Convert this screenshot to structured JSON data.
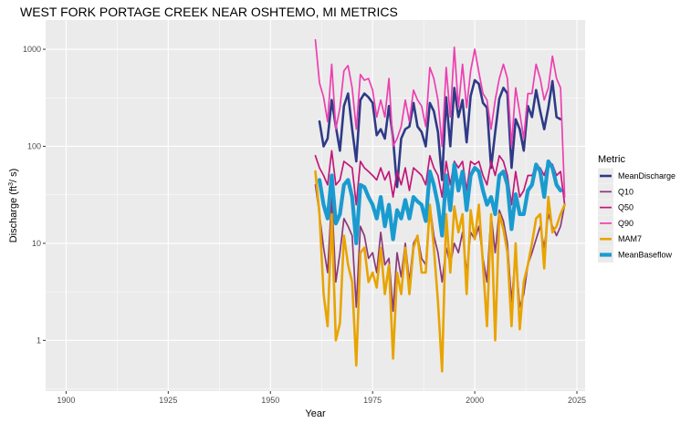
{
  "chart_data": {
    "type": "line",
    "title": "WEST FORK PORTAGE CREEK NEAR OSHTEMO, MI  METRICS",
    "xlabel": "Year",
    "ylabel": "Discharge (ft³/s)",
    "ylabel_parts": {
      "main": "Discharge (ft",
      "sup": "3",
      "tail": "/ s)"
    },
    "x_scale": "linear",
    "y_scale": "log10",
    "xlim": [
      1895,
      2027
    ],
    "ylim": [
      0.3,
      2000
    ],
    "x_ticks": [
      1900,
      1925,
      1950,
      1975,
      2000,
      2025
    ],
    "x_tick_labels": [
      "1900",
      "1925",
      "1950",
      "1975",
      "2000",
      "2025"
    ],
    "y_ticks": [
      1,
      10,
      100,
      1000
    ],
    "y_tick_labels": [
      "1",
      "10",
      "100",
      "1000"
    ],
    "grid": true,
    "background": "#ebebeb",
    "legend": {
      "title": "Metric",
      "position": "right"
    },
    "series": [
      {
        "name": "MeanDischarge",
        "color": "#2e3a87",
        "width": 2.6,
        "x": [
          1961,
          1962,
          1963,
          1964,
          1965,
          1966,
          1967,
          1968,
          1969,
          1970,
          1971,
          1972,
          1973,
          1974,
          1975,
          1976,
          1977,
          1978,
          1979,
          1980,
          1981,
          1982,
          1983,
          1984,
          1985,
          1986,
          1987,
          1988,
          1989,
          1990,
          1991,
          1992,
          1993,
          1994,
          1995,
          1996,
          1997,
          1998,
          1999,
          2000,
          2001,
          2002,
          2003,
          2004,
          2005,
          2006,
          2007,
          2008,
          2009,
          2010,
          2011,
          2012,
          2013,
          2014,
          2015,
          2016,
          2017,
          2018,
          2019,
          2020,
          2021,
          2022
        ],
        "values": [
          null,
          180,
          100,
          120,
          300,
          160,
          90,
          260,
          350,
          150,
          70,
          300,
          350,
          320,
          280,
          130,
          150,
          120,
          260,
          120,
          38,
          120,
          150,
          160,
          280,
          160,
          140,
          100,
          280,
          230,
          140,
          45,
          320,
          100,
          400,
          200,
          300,
          110,
          330,
          480,
          440,
          280,
          250,
          60,
          140,
          310,
          400,
          350,
          60,
          190,
          150,
          90,
          260,
          200,
          380,
          230,
          150,
          250,
          470,
          200,
          190,
          null
        ]
      },
      {
        "name": "Q10",
        "color": "#8b3a7a",
        "width": 1.7,
        "x": [
          1961,
          1962,
          1963,
          1964,
          1965,
          1966,
          1967,
          1968,
          1969,
          1970,
          1971,
          1972,
          1973,
          1974,
          1975,
          1976,
          1977,
          1978,
          1979,
          1980,
          1981,
          1982,
          1983,
          1984,
          1985,
          1986,
          1987,
          1988,
          1989,
          1990,
          1991,
          1992,
          1993,
          1994,
          1995,
          1996,
          1997,
          1998,
          1999,
          2000,
          2001,
          2002,
          2003,
          2004,
          2005,
          2006,
          2007,
          2008,
          2009,
          2010,
          2011,
          2012,
          2013,
          2014,
          2015,
          2016,
          2017,
          2018,
          2019,
          2020,
          2021,
          2022
        ],
        "values": [
          40,
          20,
          9,
          5,
          30,
          4,
          8,
          18,
          15,
          12,
          2.2,
          15,
          12,
          7,
          8,
          5,
          13,
          6,
          7,
          2,
          8,
          4.5,
          10,
          4,
          10,
          12,
          7,
          6,
          25,
          12,
          8,
          4,
          9,
          6,
          10,
          8,
          13,
          5,
          13,
          11,
          15,
          7,
          4,
          20,
          8,
          22,
          17,
          10,
          2.5,
          8,
          2.2,
          3,
          6,
          8,
          11,
          15,
          9,
          20,
          15,
          12,
          15,
          25
        ]
      },
      {
        "name": "Q50",
        "color": "#c2187a",
        "width": 1.7,
        "x": [
          1961,
          1962,
          1963,
          1964,
          1965,
          1966,
          1967,
          1968,
          1969,
          1970,
          1971,
          1972,
          1973,
          1974,
          1975,
          1976,
          1977,
          1978,
          1979,
          1980,
          1981,
          1982,
          1983,
          1984,
          1985,
          1986,
          1987,
          1988,
          1989,
          1990,
          1991,
          1992,
          1993,
          1994,
          1995,
          1996,
          1997,
          1998,
          1999,
          2000,
          2001,
          2002,
          2003,
          2004,
          2005,
          2006,
          2007,
          2008,
          2009,
          2010,
          2011,
          2012,
          2013,
          2014,
          2015,
          2016,
          2017,
          2018,
          2019,
          2020,
          2021,
          2022
        ],
        "values": [
          80,
          60,
          50,
          40,
          90,
          40,
          45,
          70,
          65,
          60,
          25,
          70,
          60,
          55,
          50,
          45,
          60,
          45,
          55,
          30,
          55,
          40,
          60,
          35,
          60,
          55,
          50,
          40,
          80,
          60,
          50,
          30,
          70,
          40,
          70,
          60,
          70,
          35,
          70,
          65,
          70,
          50,
          40,
          70,
          50,
          80,
          70,
          50,
          25,
          55,
          30,
          35,
          50,
          50,
          60,
          60,
          50,
          70,
          65,
          50,
          55,
          25
        ]
      },
      {
        "name": "Q90",
        "color": "#ee3fb0",
        "width": 1.7,
        "x": [
          1961,
          1962,
          1963,
          1964,
          1965,
          1966,
          1967,
          1968,
          1969,
          1970,
          1971,
          1972,
          1973,
          1974,
          1975,
          1976,
          1977,
          1978,
          1979,
          1980,
          1981,
          1982,
          1983,
          1984,
          1985,
          1986,
          1987,
          1988,
          1989,
          1990,
          1991,
          1992,
          1993,
          1994,
          1995,
          1996,
          1997,
          1998,
          1999,
          2000,
          2001,
          2002,
          2003,
          2004,
          2005,
          2006,
          2007,
          2008,
          2009,
          2010,
          2011,
          2012,
          2013,
          2014,
          2015,
          2016,
          2017,
          2018,
          2019,
          2020,
          2021,
          2022
        ],
        "values": [
          1250,
          450,
          320,
          180,
          700,
          150,
          250,
          600,
          680,
          400,
          150,
          550,
          480,
          500,
          380,
          200,
          300,
          200,
          500,
          100,
          120,
          160,
          300,
          180,
          380,
          300,
          260,
          160,
          650,
          500,
          300,
          100,
          650,
          200,
          1050,
          250,
          700,
          250,
          600,
          1000,
          580,
          350,
          300,
          150,
          300,
          500,
          700,
          500,
          100,
          400,
          220,
          120,
          350,
          350,
          700,
          500,
          300,
          400,
          850,
          500,
          400,
          30
        ]
      },
      {
        "name": "MAM7",
        "color": "#e8a400",
        "width": 2.6,
        "x": [
          1961,
          1962,
          1963,
          1964,
          1965,
          1966,
          1967,
          1968,
          1969,
          1970,
          1971,
          1972,
          1973,
          1974,
          1975,
          1976,
          1977,
          1978,
          1979,
          1980,
          1981,
          1982,
          1983,
          1984,
          1985,
          1986,
          1987,
          1988,
          1989,
          1990,
          1991,
          1992,
          1993,
          1994,
          1995,
          1996,
          1997,
          1998,
          1999,
          2000,
          2001,
          2002,
          2003,
          2004,
          2005,
          2006,
          2007,
          2008,
          2009,
          2010,
          2011,
          2012,
          2013,
          2014,
          2015,
          2016,
          2017,
          2018,
          2019,
          2020,
          2021,
          2022
        ],
        "values": [
          55,
          20,
          3,
          1.4,
          20,
          1.0,
          1.5,
          12,
          6,
          4.0,
          0.55,
          8,
          9,
          4,
          5,
          3.5,
          9,
          3,
          6,
          0.65,
          5,
          3,
          9,
          3,
          9,
          12,
          5,
          5,
          25,
          9,
          2.5,
          0.48,
          20,
          5,
          24,
          13,
          20,
          3,
          22,
          11,
          25,
          6,
          1.4,
          20,
          1.0,
          20,
          14,
          8,
          1.4,
          10,
          1.3,
          4,
          6,
          10,
          18,
          20,
          5.5,
          30,
          13,
          15,
          20,
          25
        ]
      },
      {
        "name": "MeanBaseflow",
        "color": "#1a9bd0",
        "width": 4.2,
        "x": [
          1961,
          1962,
          1963,
          1964,
          1965,
          1966,
          1967,
          1968,
          1969,
          1970,
          1971,
          1972,
          1973,
          1974,
          1975,
          1976,
          1977,
          1978,
          1979,
          1980,
          1981,
          1982,
          1983,
          1984,
          1985,
          1986,
          1987,
          1988,
          1989,
          1990,
          1991,
          1992,
          1993,
          1994,
          1995,
          1996,
          1997,
          1998,
          1999,
          2000,
          2001,
          2002,
          2003,
          2004,
          2005,
          2006,
          2007,
          2008,
          2009,
          2010,
          2011,
          2012,
          2013,
          2014,
          2015,
          2016,
          2017,
          2018,
          2019,
          2020,
          2021,
          2022
        ],
        "values": [
          null,
          45,
          25,
          18,
          50,
          16,
          20,
          40,
          45,
          30,
          10,
          40,
          38,
          30,
          25,
          18,
          30,
          15,
          25,
          11,
          22,
          18,
          28,
          18,
          30,
          27,
          25,
          17,
          55,
          40,
          25,
          12,
          50,
          22,
          65,
          35,
          55,
          22,
          50,
          60,
          55,
          35,
          25,
          30,
          20,
          50,
          55,
          40,
          14,
          32,
          20,
          20,
          35,
          40,
          65,
          55,
          30,
          70,
          60,
          40,
          35,
          null
        ]
      }
    ]
  }
}
